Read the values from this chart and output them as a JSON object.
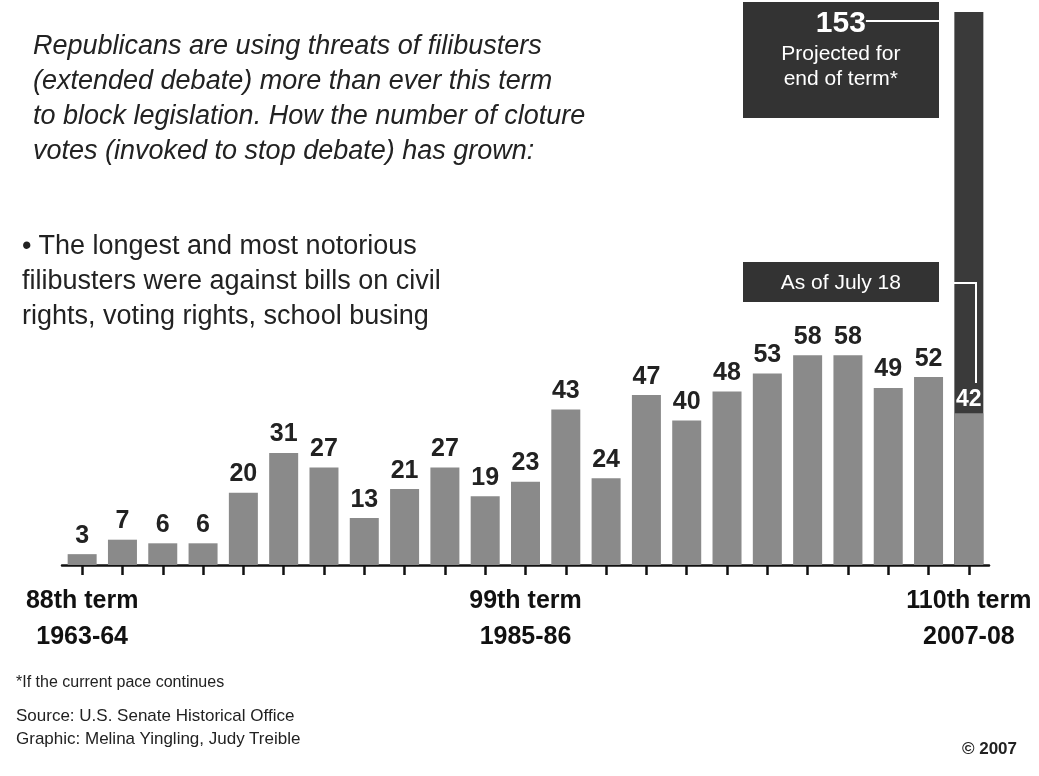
{
  "chart_data": {
    "type": "bar",
    "title": "Republicans are using threats of filibusters\n(extended debate) more than ever this term\nto block legislation. How the number of cloture\nvotes (invoked to stop debate) has grown:",
    "categories": [
      "88th term\n1963-64",
      null,
      null,
      null,
      null,
      null,
      null,
      null,
      null,
      null,
      null,
      "99th term\n1985-86",
      null,
      null,
      null,
      null,
      null,
      null,
      null,
      null,
      null,
      null,
      "110th term\n2007-08"
    ],
    "series": [
      {
        "color": "#8a8a8a",
        "values": [
          3,
          7,
          6,
          6,
          20,
          31,
          27,
          13,
          21,
          27,
          19,
          23,
          43,
          24,
          47,
          40,
          48,
          53,
          58,
          58,
          49,
          52,
          42
        ]
      },
      {
        "color": "#3a3a3a",
        "values": [
          null,
          null,
          null,
          null,
          null,
          null,
          null,
          null,
          null,
          null,
          null,
          null,
          null,
          null,
          null,
          null,
          null,
          null,
          null,
          null,
          null,
          null,
          153
        ]
      }
    ],
    "data_labels": true,
    "annotations": [
      "• The longest and most notorious\nfilibusters were against bills on civil\nrights, voting rights, school busing",
      "Projected for\nend of term*",
      "As of July 18",
      "*If the current pace continues",
      "Source: U.S. Senate Historical Office",
      "Graphic: Melina Yingling, Judy Treible",
      "© 2007"
    ]
  }
}
